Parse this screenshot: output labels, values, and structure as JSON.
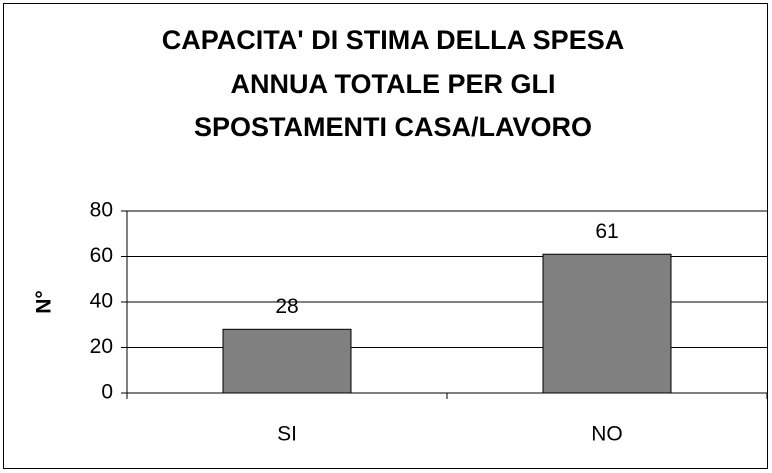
{
  "chart_data": {
    "type": "bar",
    "title": [
      "CAPACITA' DI STIMA  DELLA SPESA",
      "ANNUA TOTALE PER GLI",
      "SPOSTAMENTI CASA/LAVORO"
    ],
    "y_label": "N°",
    "categories": [
      "SI",
      "NO"
    ],
    "values": [
      28,
      61
    ],
    "color": "#808080",
    "ylim": [
      0,
      80
    ],
    "yticks": [
      0,
      20,
      40,
      60,
      80
    ],
    "grid": true
  }
}
